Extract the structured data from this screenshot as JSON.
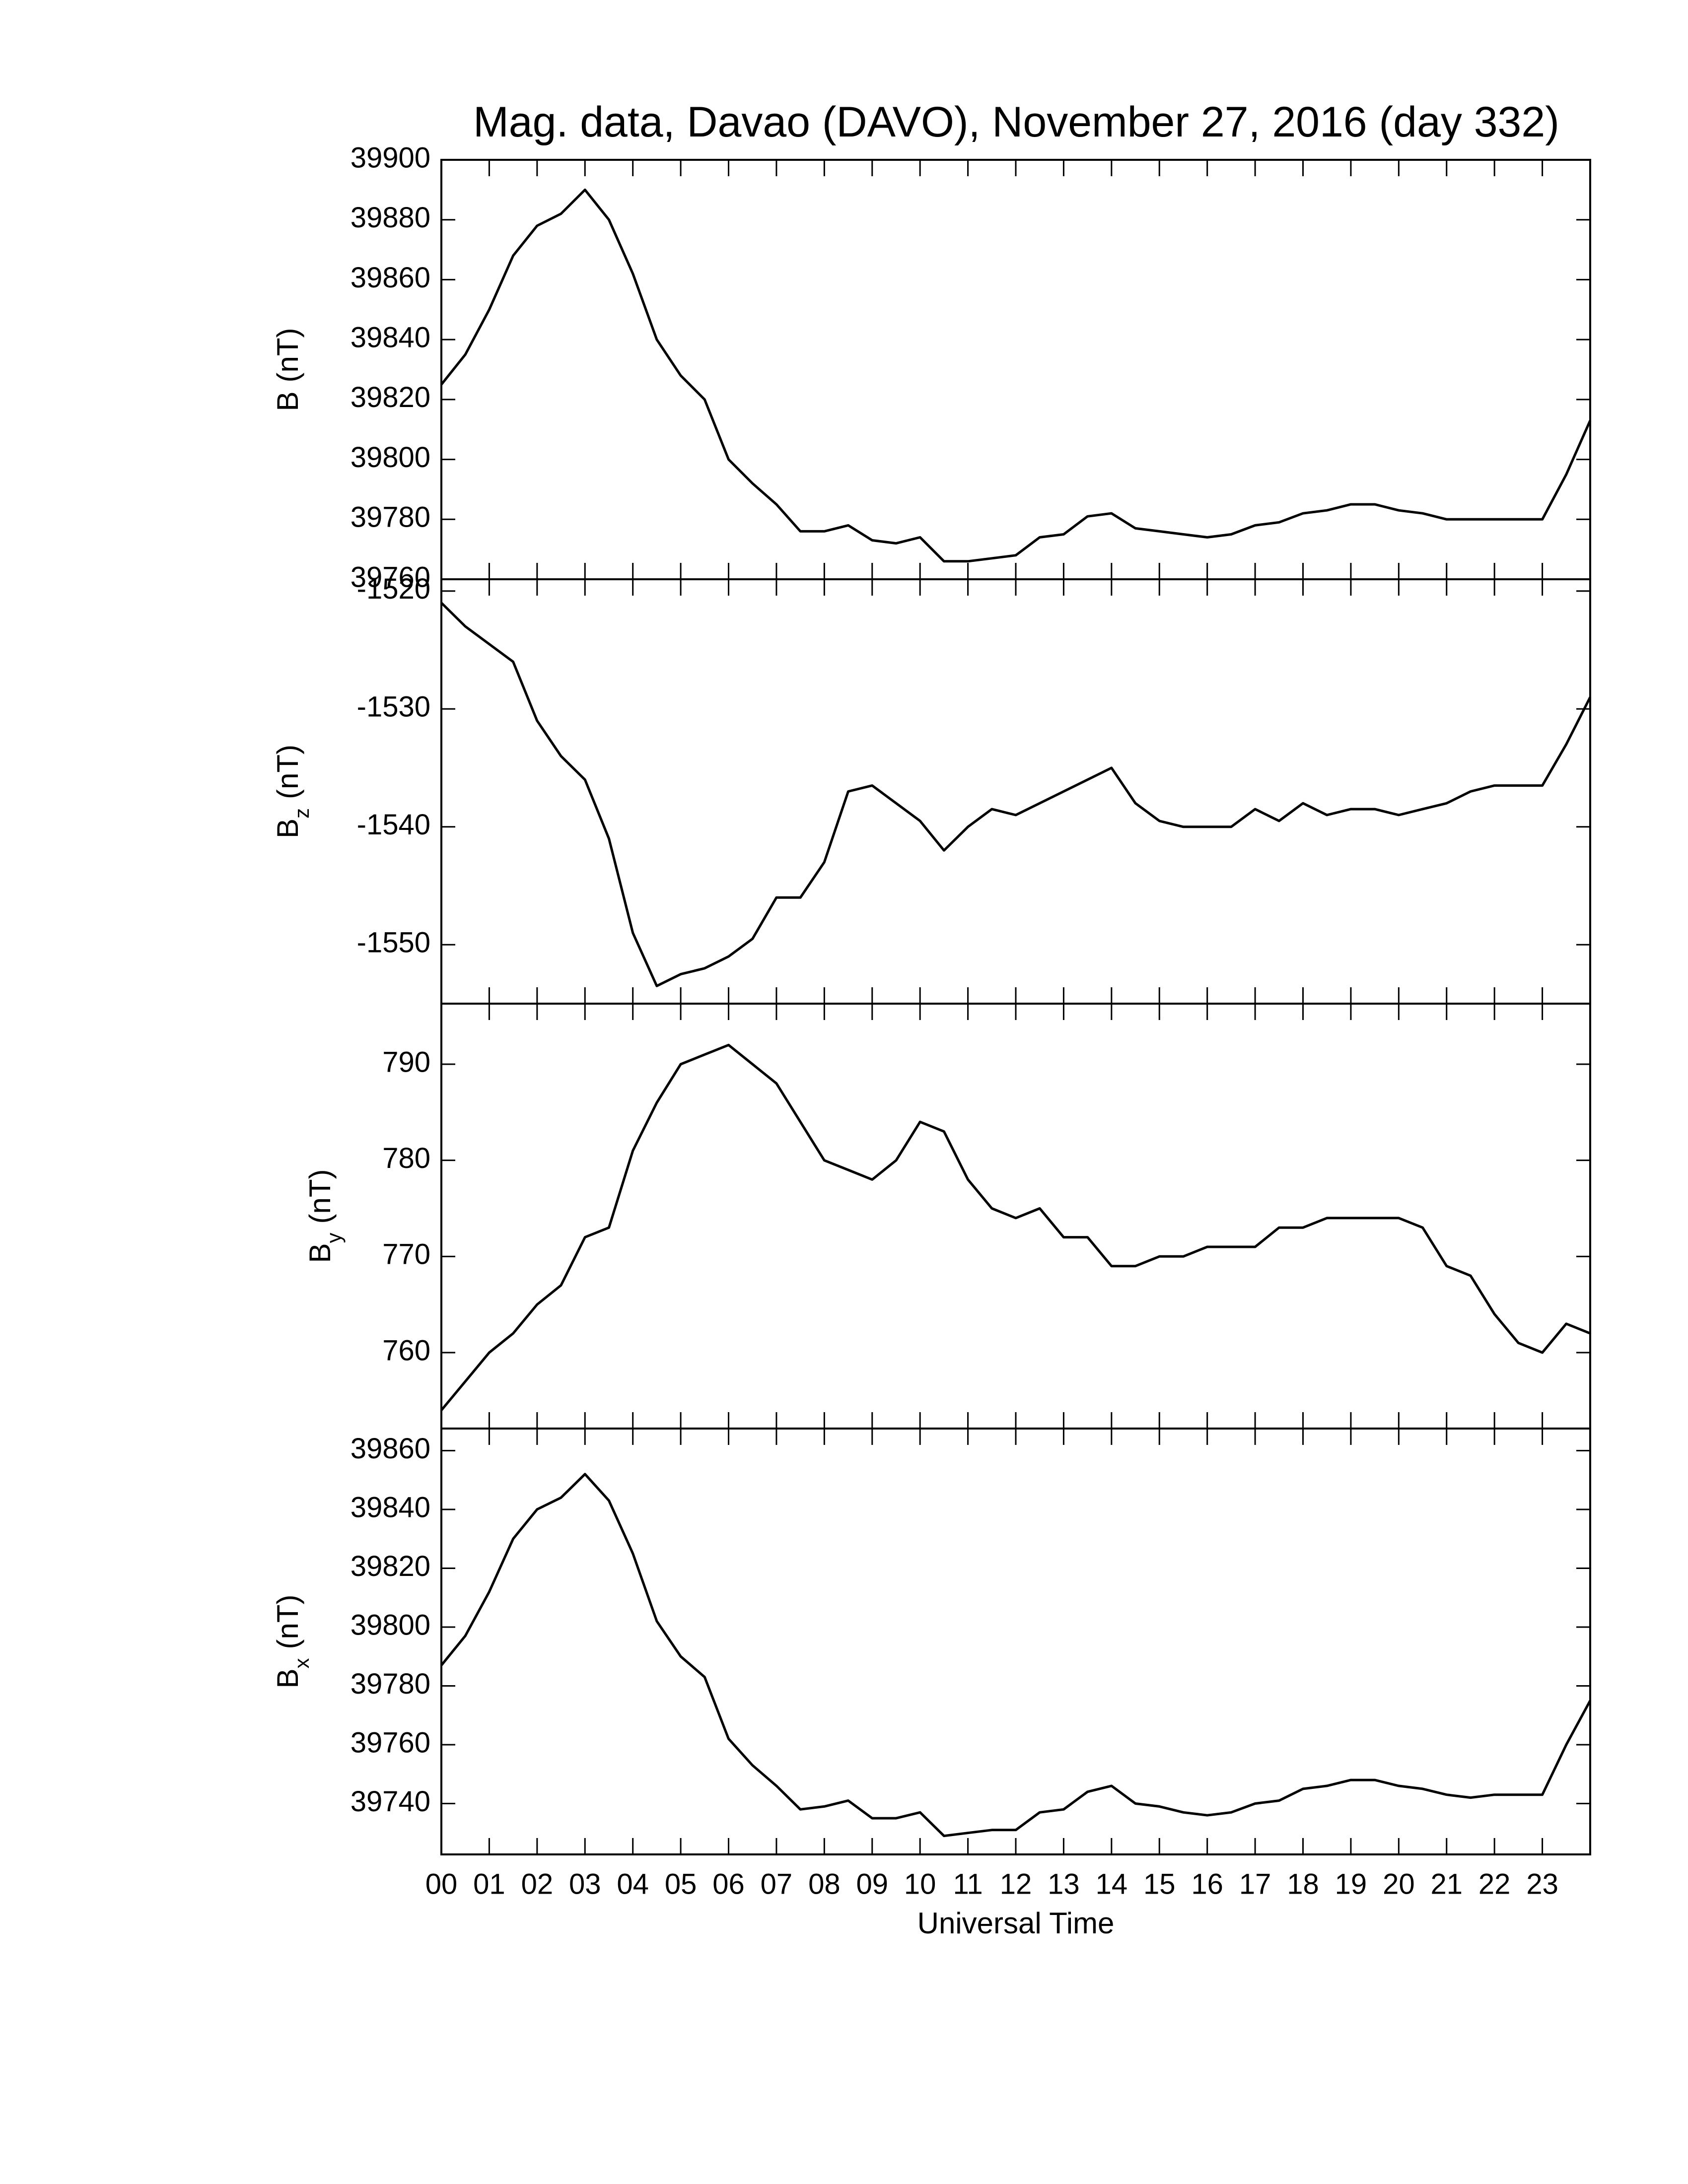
{
  "chart_data": [
    {
      "type": "line",
      "title": "Mag. data, Davao (DAVO), November 27, 2016 (day 332)",
      "ylabel": "B",
      "ylabel_unit": "(nT)",
      "x": [
        0,
        0.5,
        1,
        1.5,
        2,
        2.5,
        3,
        3.5,
        4,
        4.5,
        5,
        5.5,
        6,
        6.5,
        7,
        7.5,
        8,
        8.5,
        9,
        9.5,
        10,
        10.5,
        11,
        11.5,
        12,
        12.5,
        13,
        13.5,
        14,
        14.5,
        15,
        15.5,
        16,
        16.5,
        17,
        17.5,
        18,
        18.5,
        19,
        19.5,
        20,
        20.5,
        21,
        21.5,
        22,
        22.5,
        23,
        23.5,
        24
      ],
      "values": [
        39825,
        39835,
        39850,
        39868,
        39878,
        39882,
        39890,
        39880,
        39862,
        39840,
        39828,
        39820,
        39800,
        39792,
        39785,
        39776,
        39776,
        39778,
        39773,
        39772,
        39774,
        39766,
        39766,
        39767,
        39768,
        39774,
        39775,
        39781,
        39782,
        39777,
        39776,
        39775,
        39774,
        39775,
        39778,
        39779,
        39782,
        39783,
        39785,
        39785,
        39783,
        39782,
        39780,
        39780,
        39780,
        39780,
        39780,
        39795,
        39813
      ],
      "color": "#000000",
      "ylim": [
        39760,
        39900
      ],
      "yticks": [
        39760,
        39780,
        39800,
        39820,
        39840,
        39860,
        39880,
        39900
      ]
    },
    {
      "type": "line",
      "ylabel": "B",
      "ylabel_sub": "z",
      "ylabel_unit": "(nT)",
      "x": [
        0,
        0.5,
        1,
        1.5,
        2,
        2.5,
        3,
        3.5,
        4,
        4.5,
        5,
        5.5,
        6,
        6.5,
        7,
        7.5,
        8,
        8.5,
        9,
        9.5,
        10,
        10.5,
        11,
        11.5,
        12,
        12.5,
        13,
        13.5,
        14,
        14.5,
        15,
        15.5,
        16,
        16.5,
        17,
        17.5,
        18,
        18.5,
        19,
        19.5,
        20,
        20.5,
        21,
        21.5,
        22,
        22.5,
        23,
        23.5,
        24
      ],
      "values": [
        -1521,
        -1523,
        -1524.5,
        -1526,
        -1531,
        -1534,
        -1536,
        -1541,
        -1549,
        -1553.5,
        -1552.5,
        -1552,
        -1551,
        -1549.5,
        -1546,
        -1546,
        -1543,
        -1537,
        -1536.5,
        -1538,
        -1539.5,
        -1542,
        -1540,
        -1538.5,
        -1539,
        -1538,
        -1537,
        -1536,
        -1535,
        -1538,
        -1539.5,
        -1540,
        -1540,
        -1540,
        -1538.5,
        -1539.5,
        -1538,
        -1539,
        -1538.5,
        -1538.5,
        -1539,
        -1538.5,
        -1538,
        -1537,
        -1536.5,
        -1536.5,
        -1536.5,
        -1533,
        -1529
      ],
      "color": "#000000",
      "ylim": [
        -1555,
        -1519
      ],
      "yticks": [
        -1550,
        -1540,
        -1530,
        -1520
      ]
    },
    {
      "type": "line",
      "ylabel": "B",
      "ylabel_sub": "y",
      "ylabel_unit": "(nT)",
      "x": [
        0,
        0.5,
        1,
        1.5,
        2,
        2.5,
        3,
        3.5,
        4,
        4.5,
        5,
        5.5,
        6,
        6.5,
        7,
        7.5,
        8,
        8.5,
        9,
        9.5,
        10,
        10.5,
        11,
        11.5,
        12,
        12.5,
        13,
        13.5,
        14,
        14.5,
        15,
        15.5,
        16,
        16.5,
        17,
        17.5,
        18,
        18.5,
        19,
        19.5,
        20,
        20.5,
        21,
        21.5,
        22,
        22.5,
        23,
        23.5,
        24
      ],
      "values": [
        754,
        757,
        760,
        762,
        765,
        767,
        772,
        773,
        781,
        786,
        790,
        791,
        792,
        790,
        788,
        784,
        780,
        779,
        778,
        780,
        784,
        783,
        778,
        775,
        774,
        775,
        772,
        772,
        769,
        769,
        770,
        770,
        771,
        771,
        771,
        773,
        773,
        774,
        774,
        774,
        774,
        773,
        769,
        768,
        764,
        761,
        760,
        763,
        762
      ],
      "color": "#000000",
      "ylim": [
        752.1,
        796.3
      ],
      "yticks": [
        760,
        770,
        780,
        790
      ]
    },
    {
      "type": "line",
      "ylabel": "B",
      "ylabel_sub": "x",
      "ylabel_unit": "(nT)",
      "xlabel": "Universal Time",
      "x": [
        0,
        0.5,
        1,
        1.5,
        2,
        2.5,
        3,
        3.5,
        4,
        4.5,
        5,
        5.5,
        6,
        6.5,
        7,
        7.5,
        8,
        8.5,
        9,
        9.5,
        10,
        10.5,
        11,
        11.5,
        12,
        12.5,
        13,
        13.5,
        14,
        14.5,
        15,
        15.5,
        16,
        16.5,
        17,
        17.5,
        18,
        18.5,
        19,
        19.5,
        20,
        20.5,
        21,
        21.5,
        22,
        22.5,
        23,
        23.5,
        24
      ],
      "values": [
        39787,
        39797,
        39812,
        39830,
        39840,
        39844,
        39852,
        39843,
        39825,
        39802,
        39790,
        39783,
        39762,
        39753,
        39746,
        39738,
        39739,
        39741,
        39735,
        39735,
        39737,
        39729,
        39730,
        39731,
        39731,
        39737,
        39738,
        39744,
        39746,
        39740,
        39739,
        39737,
        39736,
        39737,
        39740,
        39741,
        39745,
        39746,
        39748,
        39748,
        39746,
        39745,
        39743,
        39742,
        39743,
        39743,
        39743,
        39760,
        39775
      ],
      "color": "#000000",
      "ylim": [
        39722.7,
        39867.5
      ],
      "yticks": [
        39740,
        39760,
        39780,
        39800,
        39820,
        39840,
        39860
      ],
      "xlim": [
        0,
        24
      ],
      "xticks": [
        {
          "value": 0,
          "label": "00"
        },
        {
          "value": 1,
          "label": "01"
        },
        {
          "value": 2,
          "label": "02"
        },
        {
          "value": 3,
          "label": "03"
        },
        {
          "value": 4,
          "label": "04"
        },
        {
          "value": 5,
          "label": "05"
        },
        {
          "value": 6,
          "label": "06"
        },
        {
          "value": 7,
          "label": "07"
        },
        {
          "value": 8,
          "label": "08"
        },
        {
          "value": 9,
          "label": "09"
        },
        {
          "value": 10,
          "label": "10"
        },
        {
          "value": 11,
          "label": "11"
        },
        {
          "value": 12,
          "label": "12"
        },
        {
          "value": 13,
          "label": "13"
        },
        {
          "value": 14,
          "label": "14"
        },
        {
          "value": 15,
          "label": "15"
        },
        {
          "value": 16,
          "label": "16"
        },
        {
          "value": 17,
          "label": "17"
        },
        {
          "value": 18,
          "label": "18"
        },
        {
          "value": 19,
          "label": "19"
        },
        {
          "value": 20,
          "label": "20"
        },
        {
          "value": 21,
          "label": "21"
        },
        {
          "value": 22,
          "label": "22"
        },
        {
          "value": 23,
          "label": "23"
        }
      ]
    }
  ]
}
